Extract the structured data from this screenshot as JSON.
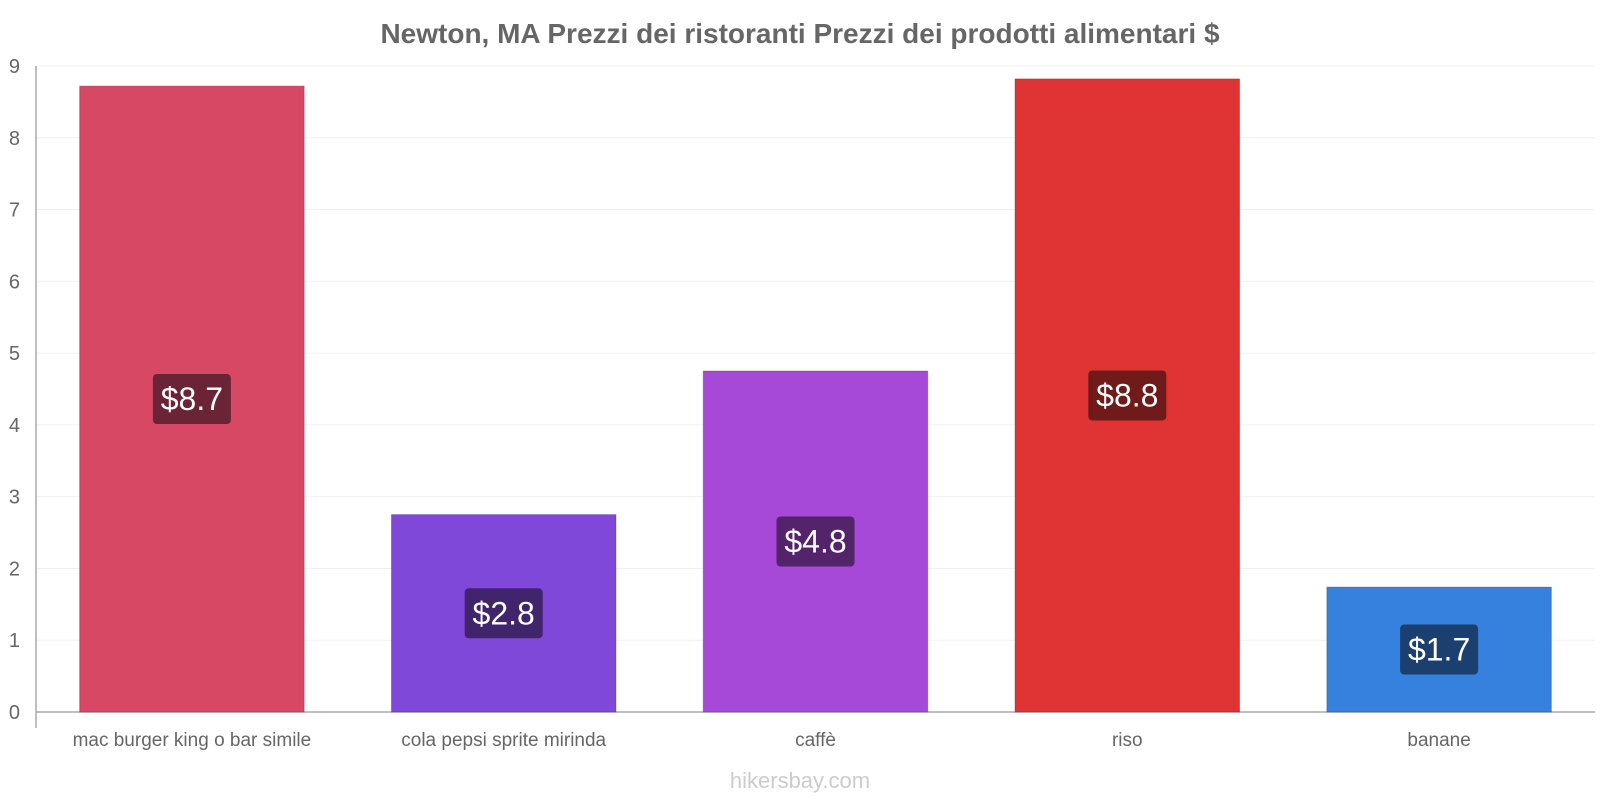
{
  "chart_data": {
    "type": "bar",
    "title": "Newton, MA Prezzi dei ristoranti Prezzi dei prodotti alimentari $",
    "categories": [
      "mac burger king o bar simile",
      "cola pepsi sprite mirinda",
      "caffè",
      "riso",
      "banane"
    ],
    "values": [
      8.7,
      2.8,
      4.8,
      8.8,
      1.7
    ],
    "bar_values": [
      8.72,
      2.75,
      4.75,
      8.82,
      1.74
    ],
    "data_labels": [
      "$8.7",
      "$2.8",
      "$4.8",
      "$8.8",
      "$1.7"
    ],
    "colors": [
      "#d64864",
      "#8048d8",
      "#a648d8",
      "#e03434",
      "#3680de"
    ],
    "label_bg_colors": [
      "#6b2435",
      "#40246c",
      "#53246c",
      "#701a1a",
      "#1b406f"
    ],
    "yticks": [
      0,
      1,
      2,
      3,
      4,
      5,
      6,
      7,
      8,
      9
    ],
    "ylim": [
      0,
      9
    ],
    "xlabel": "",
    "ylabel": "",
    "grid": true,
    "legend": "none"
  },
  "footer": {
    "watermark": "hikersbay.com"
  }
}
